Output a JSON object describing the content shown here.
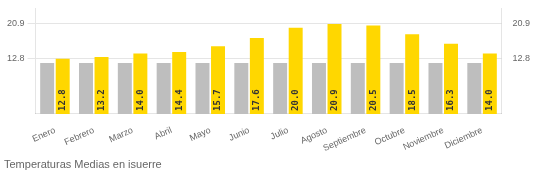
{
  "chart_data": {
    "type": "bar",
    "title": "Temperaturas Medias en isuerre",
    "categories": [
      "Enero",
      "Febrero",
      "Marzo",
      "Abril",
      "Mayo",
      "Junio",
      "Julio",
      "Agosto",
      "Septiembre",
      "Octubre",
      "Noviembre",
      "Diciembre"
    ],
    "series": [
      {
        "color": "#BEBEBE",
        "values": [
          11.8,
          11.8,
          11.8,
          11.8,
          11.8,
          11.8,
          11.8,
          11.8,
          11.8,
          11.8,
          11.8,
          11.8
        ]
      },
      {
        "color": "#FFD700",
        "values": [
          12.8,
          13.2,
          14.0,
          14.4,
          15.7,
          17.6,
          20.0,
          20.9,
          20.5,
          18.5,
          16.3,
          14.0
        ],
        "value_labels": [
          "12.8",
          "13.2",
          "14.0",
          "14.4",
          "15.7",
          "17.6",
          "20.0",
          "20.9",
          "20.5",
          "18.5",
          "16.3",
          "14.0"
        ],
        "data_labels": true
      }
    ],
    "ylim": [
      0.0,
      24.5
    ],
    "yticks": [
      12.8,
      20.9
    ],
    "y2lim": [
      0.0,
      24.5
    ],
    "y2ticks": [
      12.8,
      20.9
    ],
    "grid": true
  }
}
